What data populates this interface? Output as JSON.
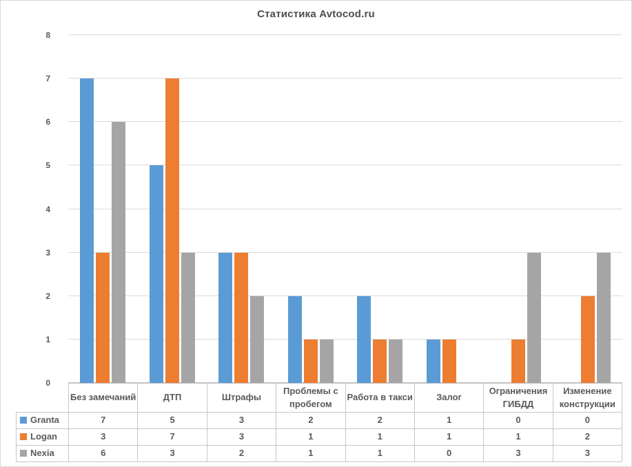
{
  "chart_data": {
    "type": "bar",
    "title": "Статистика Avtocod.ru",
    "xlabel": "",
    "ylabel": "",
    "categories": [
      "Без замечаний",
      "ДТП",
      "Штрафы",
      "Проблемы с пробегом",
      "Работа в такси",
      "Залог",
      "Ограничения ГИБДД",
      "Изменение конструкции"
    ],
    "series": [
      {
        "name": "Granta",
        "color": "#5B9BD5",
        "values": [
          7,
          5,
          3,
          2,
          2,
          1,
          0,
          0
        ]
      },
      {
        "name": "Logan",
        "color": "#ED7D31",
        "values": [
          3,
          7,
          3,
          1,
          1,
          1,
          1,
          2
        ]
      },
      {
        "name": "Nexia",
        "color": "#A5A5A5",
        "values": [
          6,
          3,
          2,
          1,
          1,
          0,
          3,
          3
        ]
      }
    ],
    "ylim": [
      0,
      8
    ],
    "yticks": [
      0,
      1,
      2,
      3,
      4,
      5,
      6,
      7,
      8
    ],
    "grid": true,
    "legend_position": "data-table-left"
  },
  "colors": {
    "granta": "#5B9BD5",
    "logan": "#ED7D31",
    "nexia": "#A5A5A5",
    "text": "#595959",
    "gridline": "#D9D9D9",
    "table_border": "#C6C6C6",
    "background": "#FFFFFF"
  }
}
